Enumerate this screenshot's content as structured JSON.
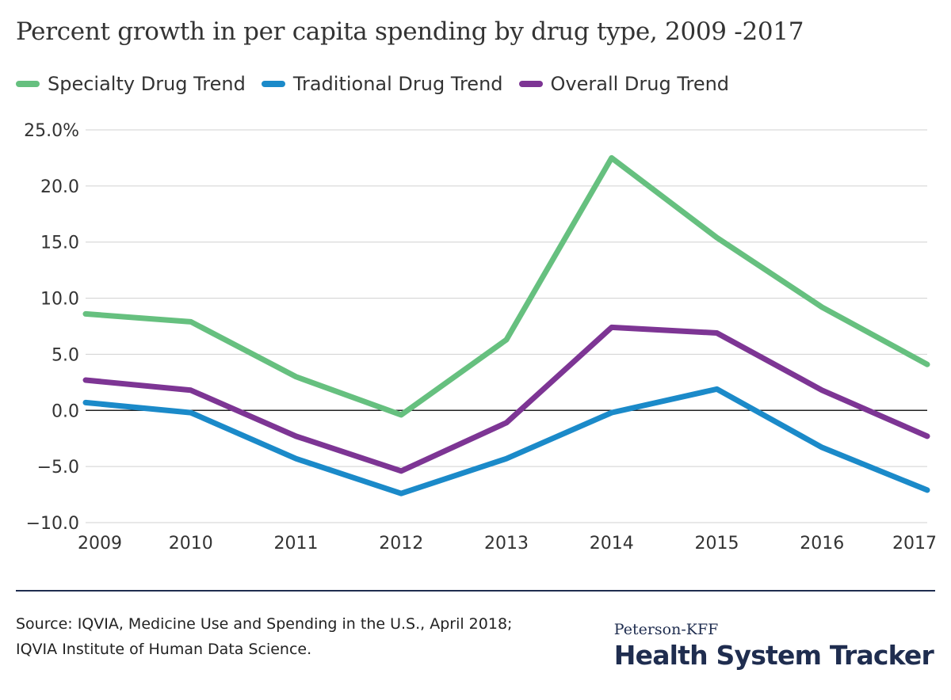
{
  "chart_data": {
    "type": "line",
    "title": "Percent growth in per capita spending by drug type, 2009 -2017",
    "xlabel": "",
    "ylabel": "",
    "categories": [
      "2009",
      "2010",
      "2011",
      "2012",
      "2013",
      "2014",
      "2015",
      "2016",
      "2017"
    ],
    "ylim": [
      -10,
      25
    ],
    "yticks": [
      25,
      20,
      15,
      10,
      5,
      0,
      -5,
      -10
    ],
    "ytick_labels": [
      "25.0%",
      "20.0",
      "15.0",
      "10.0",
      "5.0",
      "0.0",
      "−5.0",
      "−10.0"
    ],
    "grid": true,
    "legend_position": "top-left",
    "series": [
      {
        "name": "Specialty Drug Trend",
        "color": "#66c07f",
        "values": [
          8.6,
          7.9,
          3.0,
          -0.4,
          6.3,
          22.5,
          15.4,
          9.2,
          4.1
        ]
      },
      {
        "name": "Traditional Drug Trend",
        "color": "#1b8ac9",
        "values": [
          0.7,
          -0.2,
          -4.3,
          -7.4,
          -4.3,
          -0.2,
          1.9,
          -3.3,
          -7.1
        ]
      },
      {
        "name": "Overall Drug Trend",
        "color": "#7d3594",
        "values": [
          2.7,
          1.8,
          -2.3,
          -5.4,
          -1.1,
          7.4,
          6.9,
          1.8,
          -2.3
        ]
      }
    ]
  },
  "footer": {
    "source": "Source: IQVIA, Medicine Use and Spending in the U.S., April 2018; IQVIA Institute of Human Data Science."
  },
  "brand": {
    "sub": "Peterson-KFF",
    "main": "Health System Tracker"
  }
}
